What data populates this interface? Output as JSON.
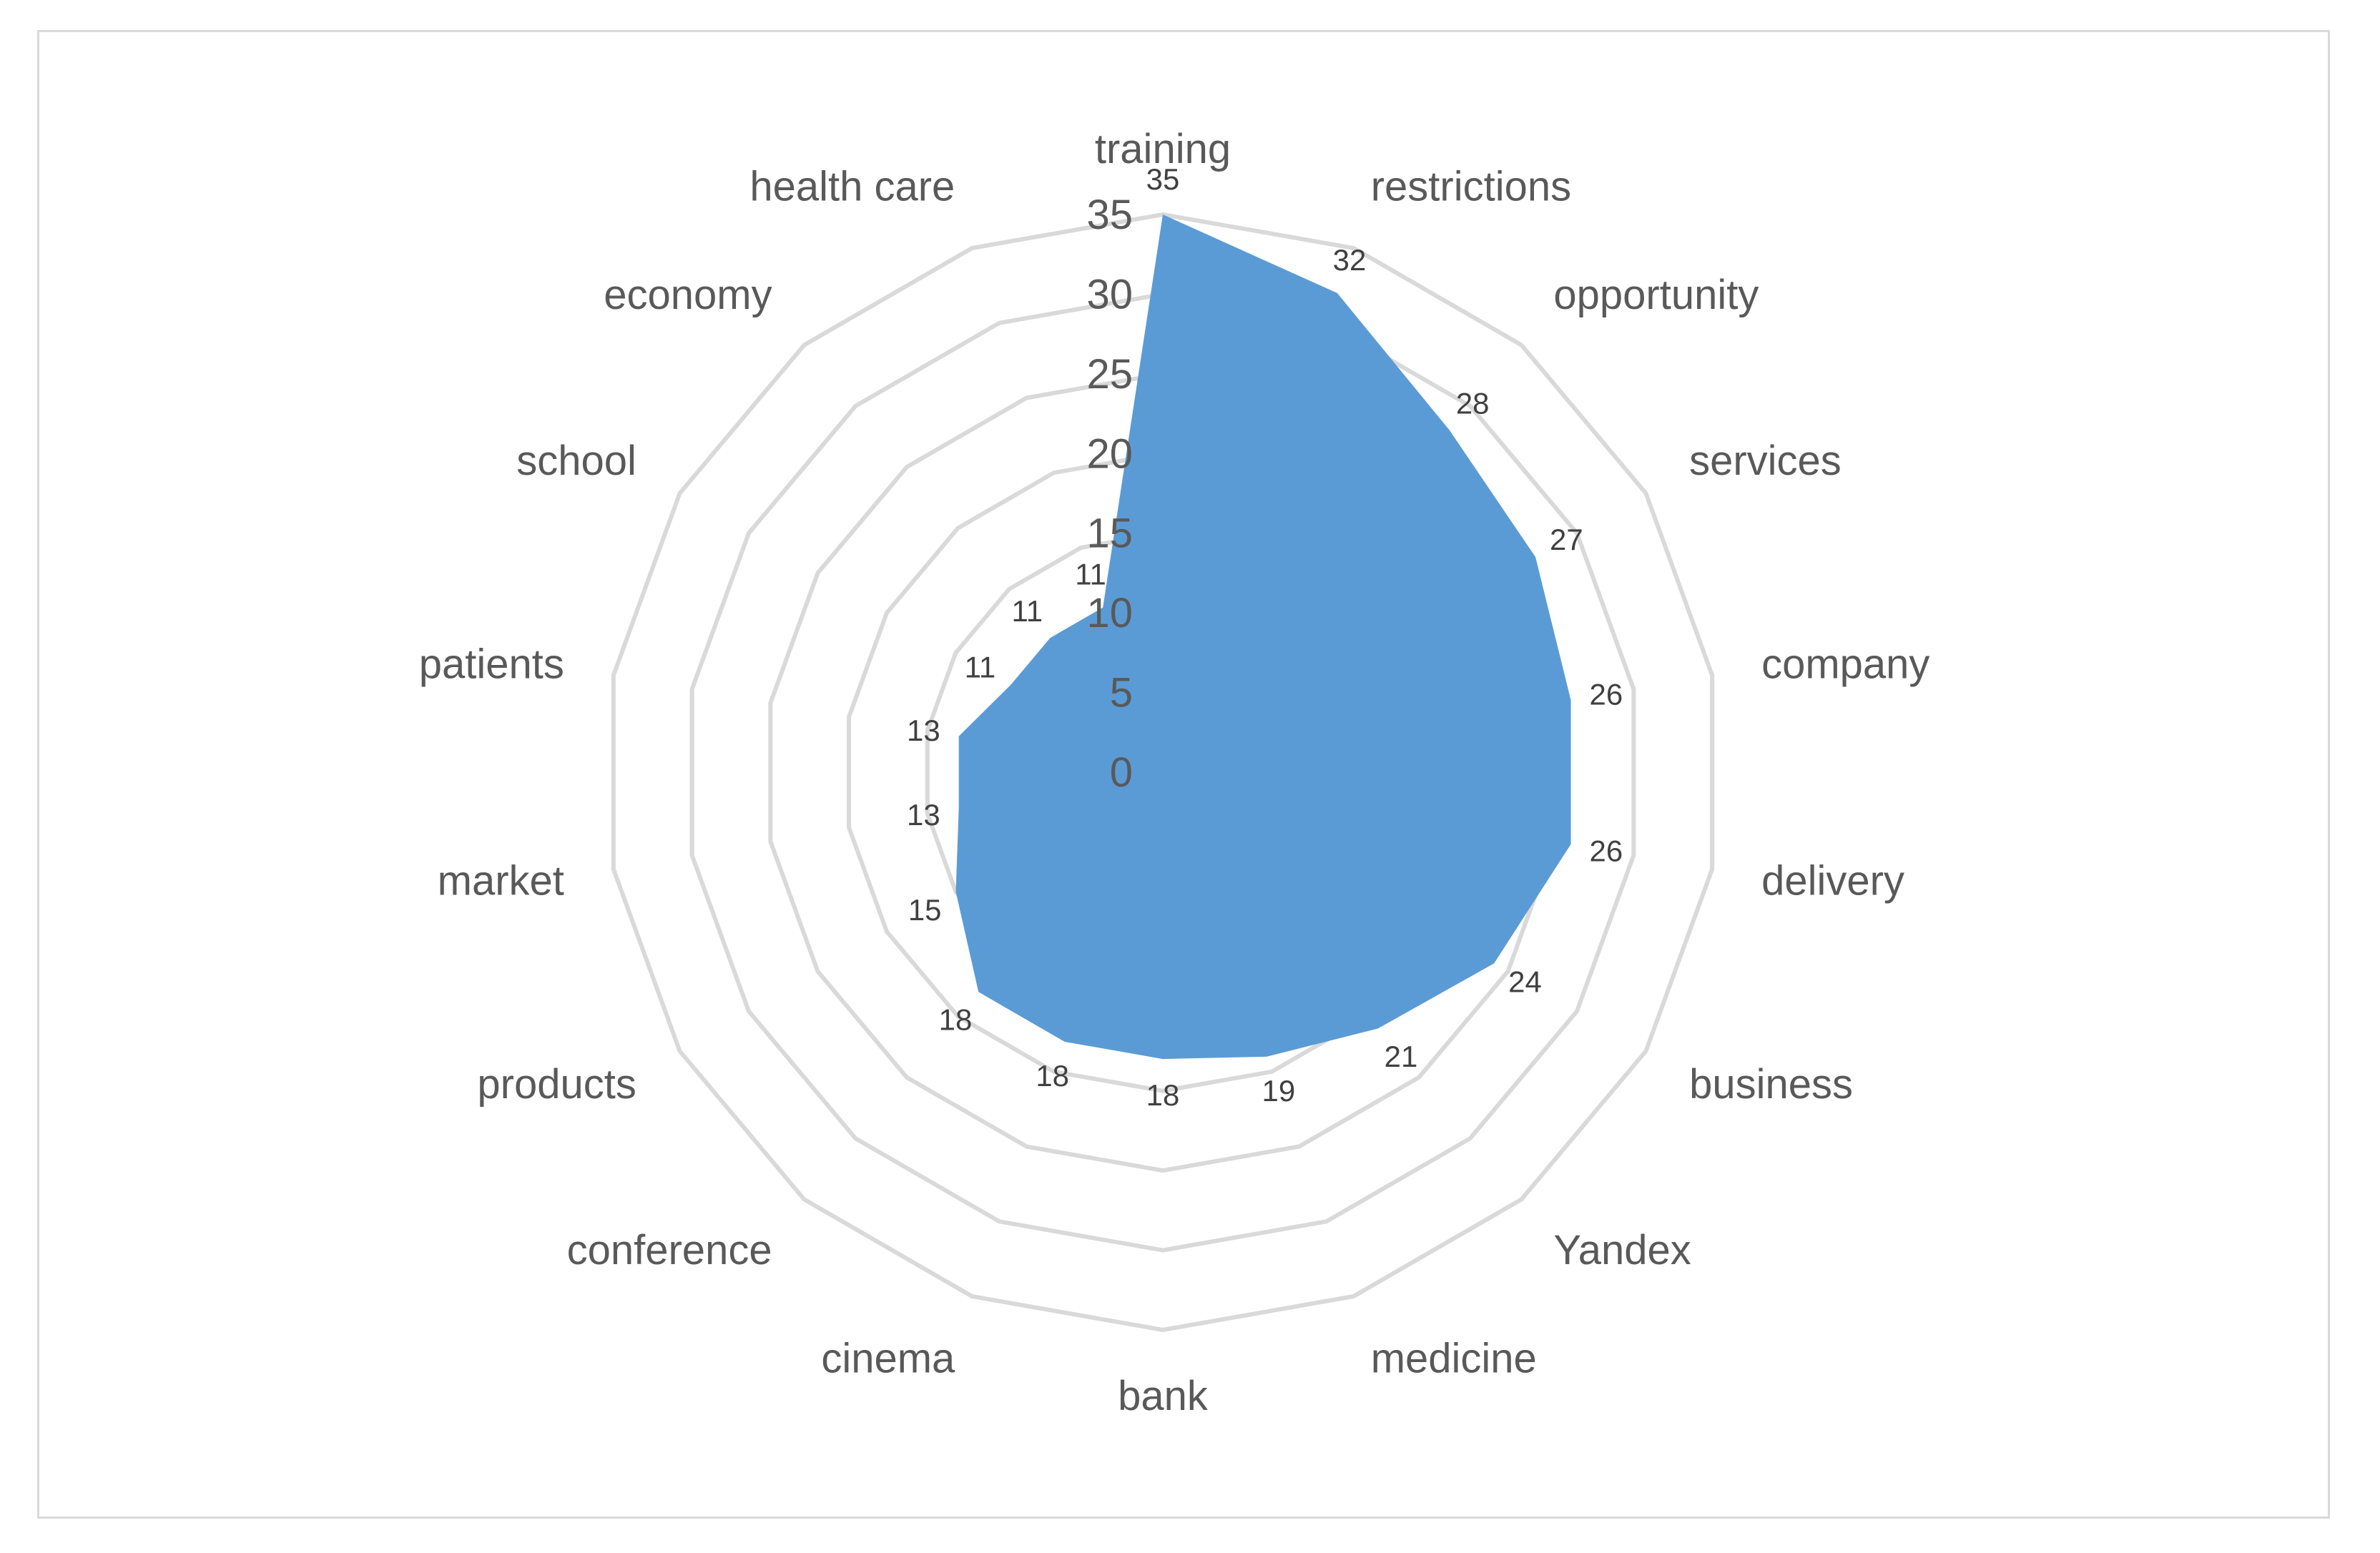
{
  "chart_data": {
    "type": "radar",
    "title": "",
    "categories": [
      "training",
      "restrictions",
      "opportunity",
      "services",
      "company",
      "delivery",
      "business",
      "Yandex",
      "medicine",
      "bank",
      "cinema",
      "conference",
      "products",
      "market",
      "patients",
      "school",
      "economy",
      "health care"
    ],
    "series": [
      {
        "values": [
          35,
          32,
          28,
          27,
          26,
          26,
          24,
          21,
          19,
          18,
          18,
          18,
          15,
          13,
          13,
          11,
          11,
          11
        ]
      }
    ],
    "data_labels": [
      "35",
      "32",
      "28",
      "27",
      "26",
      "26",
      "24",
      "21",
      "19",
      "18",
      "18",
      "18",
      "15",
      "13",
      "13",
      "11",
      "11",
      "11"
    ],
    "radial_axis": {
      "min": 0,
      "max": 35,
      "ticks": [
        "0",
        "5",
        "10",
        "15",
        "20",
        "25",
        "30",
        "35"
      ]
    },
    "grid": true,
    "legend": "none",
    "colors": {
      "series": "#5b9bd5",
      "grid": "#d9d9d9",
      "text": "#595959"
    }
  }
}
